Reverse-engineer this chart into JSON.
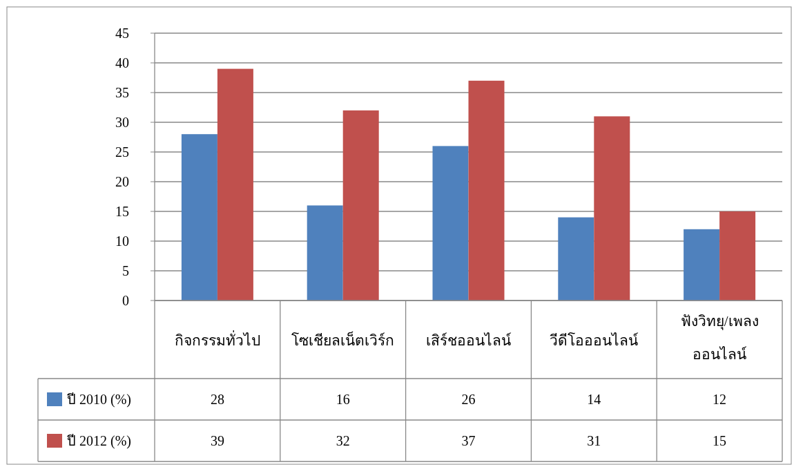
{
  "chart_data": {
    "type": "bar",
    "categories": [
      "กิจกรรมทั่วไป",
      "โซเชียลเน็ตเวิร์ก",
      "เสิร์ชออนไลน์",
      "วีดีโอออนไลน์",
      "ฟังวิทยุ/เพลง\nออนไลน์"
    ],
    "series": [
      {
        "name": "ปี 2010 (%)",
        "color": "#4f81bd",
        "values": [
          28,
          16,
          26,
          14,
          12
        ]
      },
      {
        "name": "ปี 2012 (%)",
        "color": "#c0504d",
        "values": [
          39,
          32,
          37,
          31,
          15
        ]
      }
    ],
    "ylim": [
      0,
      45
    ],
    "yticks": [
      0,
      5,
      10,
      15,
      20,
      25,
      30,
      35,
      40,
      45
    ],
    "grid": "y",
    "legend": "bottom left",
    "data_labels": true
  }
}
